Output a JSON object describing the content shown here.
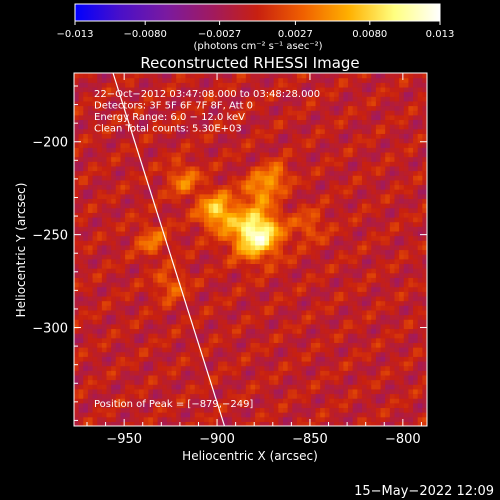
{
  "chart_data": {
    "type": "heatmap",
    "title": "Reconstructed RHESSI Image",
    "xlabel": "Heliocentric X (arcsec)",
    "ylabel": "Heliocentric Y (arcsec)",
    "xlim": [
      -977,
      -787
    ],
    "ylim": [
      -353,
      -163
    ],
    "x_ticks": [
      -950,
      -900,
      -850,
      -800
    ],
    "y_ticks": [
      -200,
      -250,
      -300
    ],
    "x_tick_labels": [
      "−950",
      "−900",
      "−850",
      "−800"
    ],
    "y_tick_labels": [
      "−200",
      "−250",
      "−300"
    ],
    "colorbar": {
      "min": -0.013,
      "max": 0.013,
      "ticks": [
        -0.013,
        -0.008,
        -0.0027,
        0.0027,
        0.008,
        0.013
      ],
      "tick_labels": [
        "−0.013",
        "−0.0080",
        "−0.0027",
        "0.0027",
        "0.0080",
        "0.013"
      ],
      "unit_label": "(photons cm⁻² s⁻¹ asec⁻²)",
      "colors": [
        "#0000ff",
        "#4a10c8",
        "#7a1aa0",
        "#a01a60",
        "#c82010",
        "#f06000",
        "#ffb000",
        "#ffff80",
        "#ffffff"
      ]
    },
    "annotations": [
      "22−Oct−2012 03:47:08.000 to 03:48:28.000",
      "Detectors: 3F 5F 6F 7F 8F, Att 0",
      "Energy Range: 6.0 − 12.0 keV",
      "Clean     Total counts: 5.30E+03"
    ],
    "peak_label": "Position of Peak = [−879,−249]",
    "peak": {
      "x": -879,
      "y": -249
    },
    "limb_line": [
      [
        -956,
        -163
      ],
      [
        -896,
        -353
      ]
    ],
    "sources": [
      {
        "x": -879,
        "y": -249,
        "amplitude": 0.013,
        "width": 9
      },
      {
        "x": -900,
        "y": -237,
        "amplitude": 0.0085,
        "width": 7
      },
      {
        "x": -877,
        "y": -225,
        "amplitude": 0.006,
        "width": 6
      },
      {
        "x": -868,
        "y": -218,
        "amplitude": 0.005,
        "width": 5
      },
      {
        "x": -918,
        "y": -220,
        "amplitude": 0.005,
        "width": 6
      },
      {
        "x": -935,
        "y": -253,
        "amplitude": 0.0045,
        "width": 6
      },
      {
        "x": -925,
        "y": -277,
        "amplitude": 0.004,
        "width": 6
      },
      {
        "x": -850,
        "y": -245,
        "amplitude": 0.0035,
        "width": 6
      }
    ]
  },
  "footer": {
    "timestamp": "15−May−2022 12:09"
  }
}
